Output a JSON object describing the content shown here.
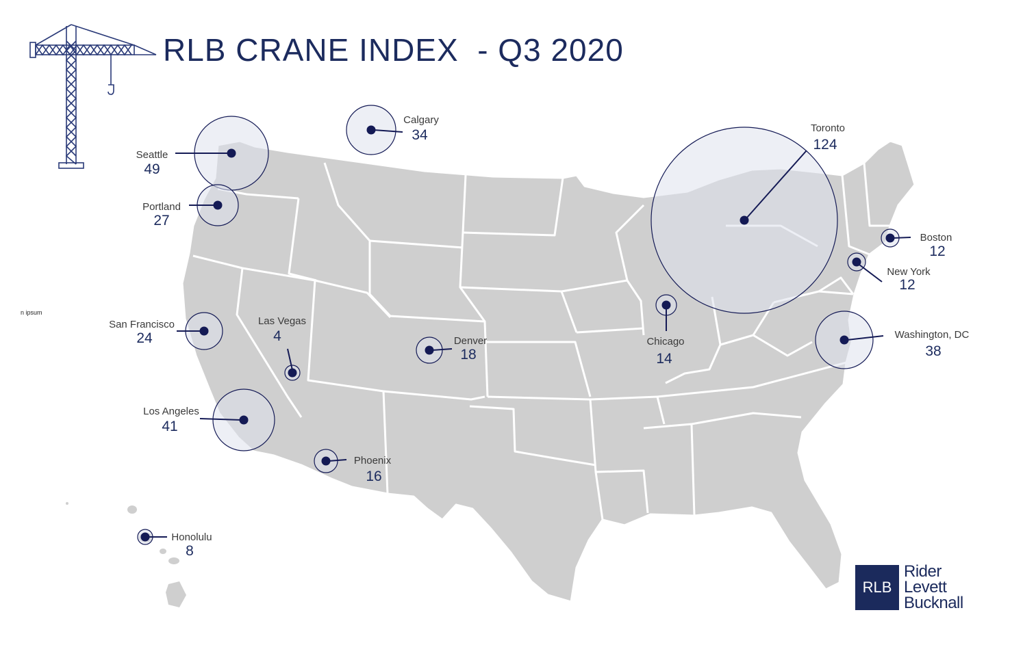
{
  "header": {
    "title": "RLB CRANE INDEX  - Q3 2020"
  },
  "stray_text": "n ipsum",
  "logo": {
    "mark": "RLB",
    "words": [
      "Rider",
      "Levett",
      "Bucknall"
    ]
  },
  "colors": {
    "accent": "#1c2b5e",
    "marker": "#141a55",
    "map_fill": "#cfcfcf",
    "map_border": "#ffffff",
    "bubble_fill": "#dfe2ec"
  },
  "cities": [
    {
      "name": "Seattle",
      "count": "49"
    },
    {
      "name": "Calgary",
      "count": "34"
    },
    {
      "name": "Portland",
      "count": "27"
    },
    {
      "name": "San Francisco",
      "count": "24"
    },
    {
      "name": "Las Vegas",
      "count": "4"
    },
    {
      "name": "Los Angeles",
      "count": "41"
    },
    {
      "name": "Phoenix",
      "count": "16"
    },
    {
      "name": "Denver",
      "count": "18"
    },
    {
      "name": "Chicago",
      "count": "14"
    },
    {
      "name": "Toronto",
      "count": "124"
    },
    {
      "name": "Boston",
      "count": "12"
    },
    {
      "name": "New York",
      "count": "12"
    },
    {
      "name": "Washington, DC",
      "count": "38"
    },
    {
      "name": "Honolulu",
      "count": "8"
    }
  ]
}
